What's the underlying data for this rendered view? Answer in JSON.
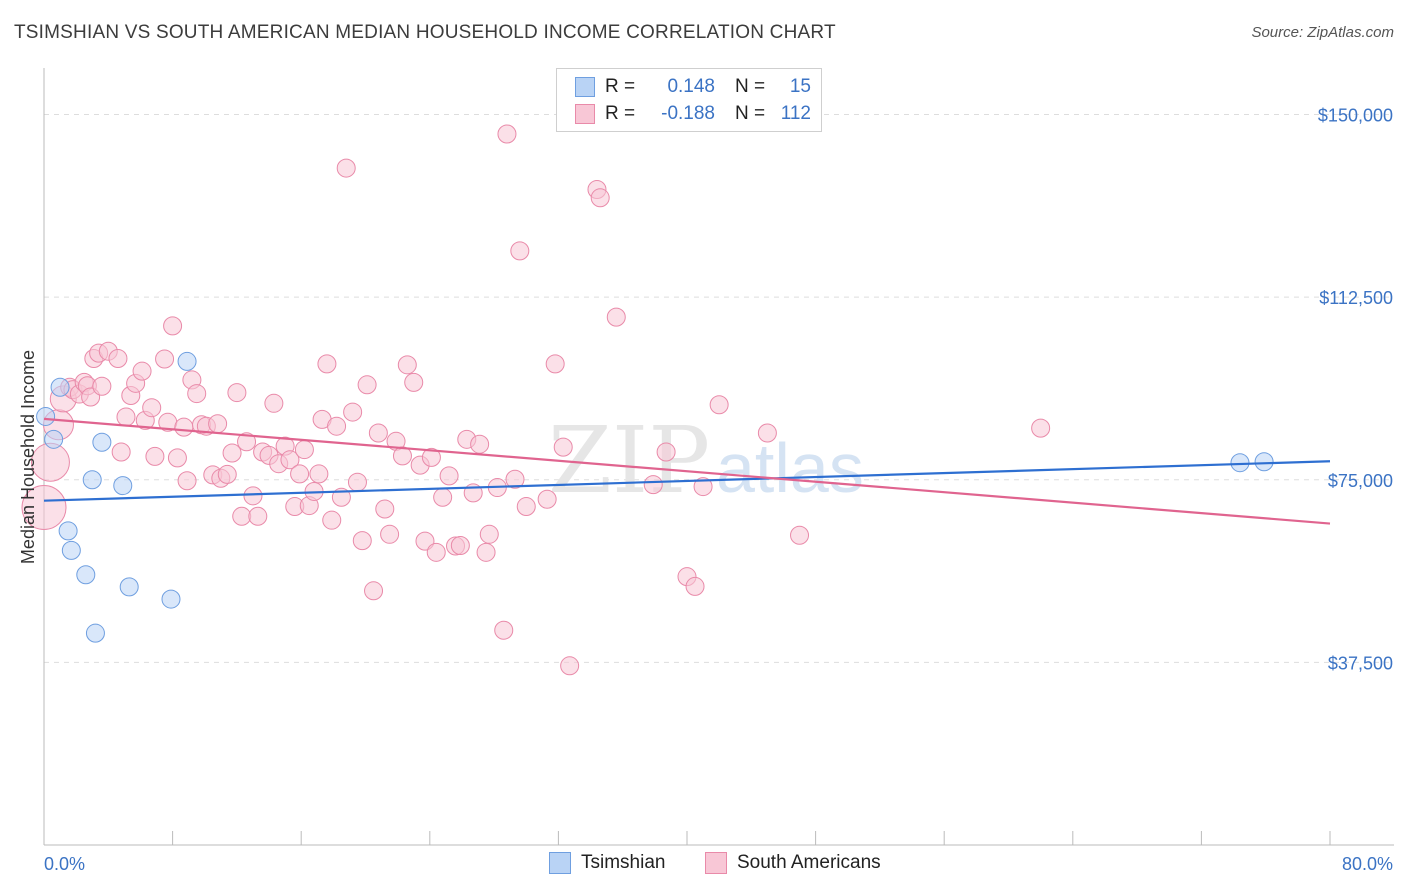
{
  "title": "TSIMSHIAN VS SOUTH AMERICAN MEDIAN HOUSEHOLD INCOME CORRELATION CHART",
  "source": "Source: ZipAtlas.com",
  "watermark": {
    "zip": "ZIP",
    "atlas": "atlas"
  },
  "colors": {
    "blue": "#3b73c4",
    "blue_fill": "#b9d3f5",
    "blue_stroke": "#6f9fe0",
    "blue_line": "#2e6fd1",
    "pink_fill": "#f8c7d6",
    "pink_stroke": "#e98aa9",
    "pink_line": "#e0648f",
    "grid": "#dddddd"
  },
  "legend": {
    "rows": [
      {
        "r_label": "R =",
        "r_value": "0.148",
        "n_label": "N =",
        "n_value": "15",
        "color": "blue"
      },
      {
        "r_label": "R =",
        "r_value": "-0.188",
        "n_label": "N =",
        "n_value": "112",
        "color": "pink"
      }
    ]
  },
  "bottom_legend": [
    "Tsimshian",
    "South Americans"
  ],
  "chart_data": {
    "type": "scatter",
    "xlabel": "",
    "ylabel": "Median Household Income",
    "xlim": [
      0,
      80
    ],
    "ylim": [
      0,
      157500
    ],
    "x_tick_labels": [
      "0.0%",
      "80.0%"
    ],
    "x_tick_positions": [
      0,
      8,
      16,
      24,
      32,
      40,
      48,
      56,
      64,
      72,
      80
    ],
    "y_ticks": [
      {
        "value": 150000,
        "label": "$150,000"
      },
      {
        "value": 112500,
        "label": "$112,500"
      },
      {
        "value": 75000,
        "label": "$75,000"
      },
      {
        "value": 37500,
        "label": "$37,500"
      }
    ],
    "series": [
      {
        "name": "Tsimshian",
        "color": "blue",
        "trend": [
          [
            0,
            70700
          ],
          [
            80,
            78800
          ]
        ],
        "points": [
          [
            0.1,
            88000,
            9
          ],
          [
            0.6,
            83300,
            9
          ],
          [
            1.0,
            94000,
            9
          ],
          [
            1.5,
            64500,
            9
          ],
          [
            1.7,
            60500,
            9
          ],
          [
            2.6,
            55500,
            9
          ],
          [
            3.0,
            75000,
            9
          ],
          [
            3.2,
            43500,
            9
          ],
          [
            3.6,
            82700,
            9
          ],
          [
            4.9,
            73800,
            9
          ],
          [
            5.3,
            53000,
            9
          ],
          [
            7.9,
            50500,
            9
          ],
          [
            8.9,
            99300,
            9
          ],
          [
            74.4,
            78500,
            9
          ],
          [
            75.9,
            78700,
            9
          ]
        ]
      },
      {
        "name": "South Americans",
        "color": "pink",
        "trend": [
          [
            0,
            87500
          ],
          [
            80,
            66000
          ]
        ],
        "points": [
          [
            0.0,
            69300,
            22
          ],
          [
            0.4,
            78600,
            19
          ],
          [
            0.9,
            86300,
            15
          ],
          [
            1.2,
            91600,
            13
          ],
          [
            1.6,
            94000,
            9
          ],
          [
            1.8,
            93500,
            9
          ],
          [
            2.2,
            92600,
            9
          ],
          [
            2.5,
            95000,
            9
          ],
          [
            2.7,
            94300,
            9
          ],
          [
            2.9,
            92000,
            9
          ],
          [
            3.1,
            99900,
            9
          ],
          [
            3.4,
            101000,
            9
          ],
          [
            3.6,
            94200,
            9
          ],
          [
            4.0,
            101400,
            9
          ],
          [
            4.6,
            99900,
            9
          ],
          [
            4.8,
            80700,
            9
          ],
          [
            5.1,
            87900,
            9
          ],
          [
            5.4,
            92300,
            9
          ],
          [
            5.7,
            94800,
            9
          ],
          [
            6.1,
            97300,
            9
          ],
          [
            6.3,
            87200,
            9
          ],
          [
            6.7,
            89800,
            9
          ],
          [
            6.9,
            79800,
            9
          ],
          [
            7.5,
            99800,
            9
          ],
          [
            7.7,
            86800,
            9
          ],
          [
            8.0,
            106600,
            9
          ],
          [
            8.3,
            79500,
            9
          ],
          [
            8.7,
            85800,
            9
          ],
          [
            8.9,
            74800,
            9
          ],
          [
            9.2,
            95500,
            9
          ],
          [
            9.5,
            92700,
            9
          ],
          [
            9.8,
            86300,
            9
          ],
          [
            10.1,
            86000,
            9
          ],
          [
            10.5,
            76000,
            9
          ],
          [
            10.8,
            86500,
            9
          ],
          [
            11.0,
            75300,
            9
          ],
          [
            11.4,
            76100,
            9
          ],
          [
            11.7,
            80500,
            9
          ],
          [
            12.0,
            92900,
            9
          ],
          [
            12.3,
            67500,
            9
          ],
          [
            12.6,
            82800,
            9
          ],
          [
            13.0,
            71700,
            9
          ],
          [
            13.3,
            67500,
            9
          ],
          [
            13.6,
            80700,
            9
          ],
          [
            14.0,
            80000,
            9
          ],
          [
            14.3,
            90700,
            9
          ],
          [
            14.6,
            78300,
            9
          ],
          [
            15.0,
            81900,
            9
          ],
          [
            15.3,
            79100,
            9
          ],
          [
            15.6,
            69500,
            9
          ],
          [
            15.9,
            76200,
            9
          ],
          [
            16.2,
            81200,
            9
          ],
          [
            16.5,
            69700,
            9
          ],
          [
            16.8,
            72600,
            9
          ],
          [
            17.1,
            76200,
            9
          ],
          [
            17.3,
            87400,
            9
          ],
          [
            17.6,
            98800,
            9
          ],
          [
            17.9,
            66700,
            9
          ],
          [
            18.2,
            86000,
            9
          ],
          [
            18.5,
            71400,
            9
          ],
          [
            18.8,
            139000,
            9
          ],
          [
            19.2,
            88900,
            9
          ],
          [
            19.5,
            74500,
            9
          ],
          [
            19.8,
            62500,
            9
          ],
          [
            20.1,
            94500,
            9
          ],
          [
            20.5,
            52200,
            9
          ],
          [
            20.8,
            84600,
            9
          ],
          [
            21.2,
            69000,
            9
          ],
          [
            21.5,
            63800,
            9
          ],
          [
            21.9,
            82900,
            9
          ],
          [
            22.3,
            79900,
            9
          ],
          [
            22.6,
            98600,
            9
          ],
          [
            23.0,
            95000,
            9
          ],
          [
            23.4,
            78000,
            9
          ],
          [
            23.7,
            62400,
            9
          ],
          [
            24.1,
            79600,
            9
          ],
          [
            24.4,
            60100,
            9
          ],
          [
            24.8,
            71400,
            9
          ],
          [
            25.2,
            75800,
            9
          ],
          [
            25.6,
            61400,
            9
          ],
          [
            25.9,
            61500,
            9
          ],
          [
            26.3,
            83300,
            9
          ],
          [
            26.7,
            72300,
            9
          ],
          [
            27.1,
            82300,
            9
          ],
          [
            27.5,
            60100,
            9
          ],
          [
            27.7,
            63800,
            9
          ],
          [
            28.2,
            73400,
            9
          ],
          [
            28.6,
            44100,
            9
          ],
          [
            28.8,
            146000,
            9
          ],
          [
            29.3,
            75100,
            9
          ],
          [
            29.6,
            122000,
            9
          ],
          [
            30.0,
            69500,
            9
          ],
          [
            31.3,
            71000,
            9
          ],
          [
            31.8,
            98800,
            9
          ],
          [
            32.3,
            81700,
            9
          ],
          [
            32.7,
            36800,
            9
          ],
          [
            34.4,
            134600,
            9
          ],
          [
            34.6,
            132900,
            9
          ],
          [
            35.6,
            108400,
            9
          ],
          [
            37.9,
            74000,
            9
          ],
          [
            38.7,
            80700,
            9
          ],
          [
            40.0,
            55100,
            9
          ],
          [
            40.5,
            53100,
            9
          ],
          [
            41.0,
            73600,
            9
          ],
          [
            42.0,
            90400,
            9
          ],
          [
            45.0,
            84600,
            9
          ],
          [
            47.0,
            63600,
            9
          ],
          [
            62.0,
            85600,
            9
          ]
        ]
      }
    ]
  }
}
